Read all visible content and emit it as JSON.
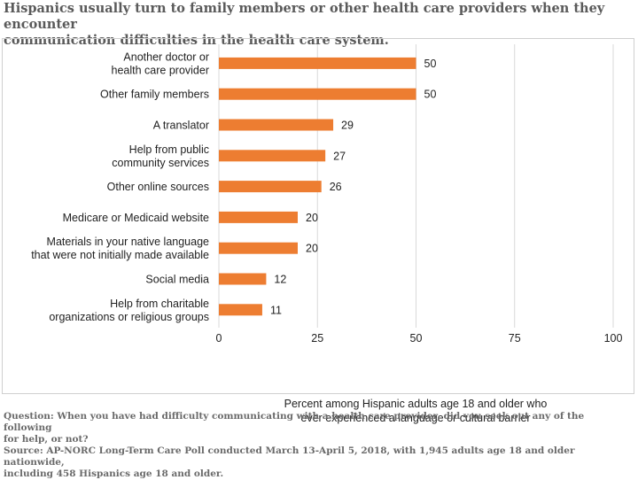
{
  "title": {
    "line1": "Hispanics usually turn to family members or other health care providers when they encounter",
    "line2": "communication difficulties in the health care system."
  },
  "footer": {
    "question_line1": "Question: When you have had difficulty communicating with a health care provider, did you seek out any of the following",
    "question_line2": "for help, or not?",
    "source_line1": "Source: AP-NORC Long-Term Care Poll conducted March 13-April 5, 2018, with 1,945 adults age 18 and older nationwide,",
    "source_line2": "including 458 Hispanics age 18 and older."
  },
  "chart_data": {
    "type": "bar",
    "orientation": "horizontal",
    "categories": [
      [
        "Another doctor or",
        "health care provider"
      ],
      [
        "Other family members"
      ],
      [
        "A translator"
      ],
      [
        "Help from public",
        "community services"
      ],
      [
        "Other online sources"
      ],
      [
        "Medicare or Medicaid website"
      ],
      [
        "Materials in your native language",
        "that were not initially made available"
      ],
      [
        "Social media"
      ],
      [
        "Help from charitable",
        "organizations or religious groups"
      ]
    ],
    "values": [
      50,
      50,
      29,
      27,
      26,
      20,
      20,
      12,
      11
    ],
    "bar_color": "#ED7D31",
    "grid_color": "#d9d9d9",
    "xlim": [
      0,
      100
    ],
    "xticks": [
      0,
      25,
      50,
      75,
      100
    ],
    "xlabel_line1": "Percent among Hispanic adults age 18 and older who",
    "xlabel_line2": "ever experienced a language or cultural barrier",
    "grid": true,
    "data_labels": true
  }
}
